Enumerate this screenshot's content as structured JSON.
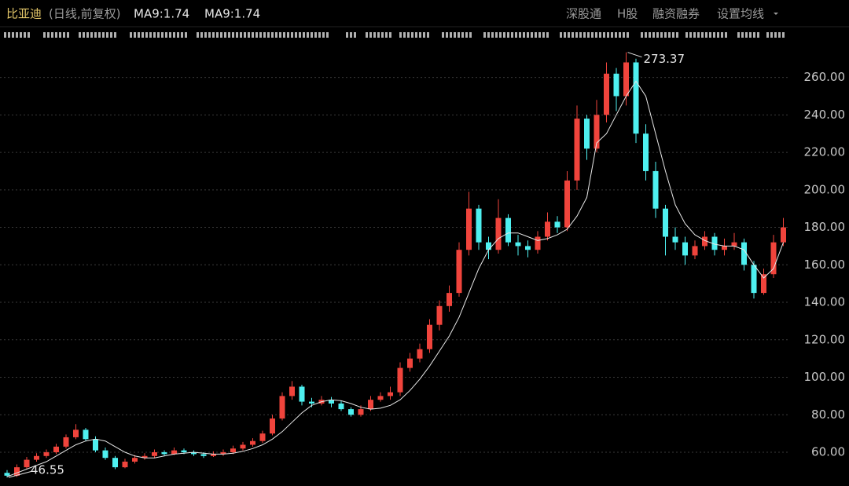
{
  "chart_data": {
    "type": "candlestick",
    "title": "比亚迪",
    "subtitle": "(日线,前复权)",
    "indicators": [
      "MA9:1.74",
      "MA9:1.74"
    ],
    "menu": [
      "深股通",
      "H股",
      "融资融券",
      "设置均线"
    ],
    "up_color": "#f0443c",
    "down_color": "#4ef0f0",
    "ma_color": "#e8e8e8",
    "grid": true,
    "ylim": [
      42,
      277
    ],
    "yticks": [
      {
        "value": 60,
        "label": "60.00"
      },
      {
        "value": 80,
        "label": "80.00"
      },
      {
        "value": 100,
        "label": "100.00"
      },
      {
        "value": 120,
        "label": "120.00"
      },
      {
        "value": 140,
        "label": "140.00"
      },
      {
        "value": 160,
        "label": "160.00"
      },
      {
        "value": 180,
        "label": "180.00"
      },
      {
        "value": 200,
        "label": "200.00"
      },
      {
        "value": 220,
        "label": "220.00"
      },
      {
        "value": 240,
        "label": "240.00"
      },
      {
        "value": 260,
        "label": "260.00"
      }
    ],
    "open": [
      49,
      47.5,
      52,
      56,
      58,
      60,
      63,
      68,
      72,
      67,
      61,
      57,
      52,
      55,
      57,
      58,
      60,
      59,
      61,
      60,
      59,
      58,
      59,
      60,
      62,
      64,
      66,
      70,
      78,
      90,
      95,
      87,
      86,
      88,
      86,
      83,
      80,
      83,
      88,
      90,
      92,
      105,
      110,
      115,
      128,
      138,
      145,
      168,
      190,
      172,
      168,
      185,
      172,
      170,
      168,
      175,
      183,
      180,
      205,
      238,
      222,
      240,
      262,
      250,
      268,
      230,
      210,
      190,
      175,
      172,
      165,
      170,
      175,
      168,
      170,
      172,
      160,
      145,
      155,
      172
    ],
    "high": [
      50.5,
      53.5,
      57.5,
      59.5,
      61.5,
      64.5,
      69.5,
      75,
      73,
      68.5,
      62.5,
      58,
      56.5,
      58.5,
      59.5,
      61.5,
      61,
      62.5,
      62,
      61,
      60,
      60.5,
      61.5,
      63.5,
      65.5,
      67.5,
      71.5,
      80,
      92,
      98,
      96,
      89,
      90,
      89.5,
      87.5,
      84,
      85,
      90,
      92,
      95,
      108,
      113,
      118,
      131,
      141,
      149,
      172,
      199,
      192,
      175,
      195,
      187,
      176,
      173,
      178,
      188,
      186,
      210,
      245,
      240,
      248,
      268,
      265,
      273.37,
      270,
      235,
      215,
      192,
      180,
      175,
      173,
      178,
      177,
      174,
      177,
      174,
      162,
      158,
      176,
      185
    ],
    "low": [
      46.55,
      46.8,
      51,
      55,
      57,
      59,
      62,
      67,
      66,
      60,
      56,
      51,
      51.5,
      54,
      56,
      57,
      58,
      58.5,
      59,
      58,
      57,
      57.5,
      58,
      59,
      61,
      63,
      65,
      69,
      77,
      88,
      85,
      84,
      85,
      84,
      82,
      79,
      79,
      82,
      87,
      88,
      90,
      103,
      108,
      113,
      125,
      135,
      143,
      165,
      168,
      163,
      166,
      170,
      165,
      164,
      166,
      173,
      177,
      178,
      200,
      216,
      220,
      236,
      242,
      245,
      225,
      205,
      185,
      165,
      168,
      160,
      163,
      168,
      165,
      165,
      168,
      157,
      142,
      144,
      153,
      170
    ],
    "close": [
      47.5,
      52,
      56,
      58,
      60,
      63,
      68,
      72,
      67,
      61,
      57,
      52,
      55,
      57,
      58,
      60,
      59,
      61,
      60,
      59,
      58,
      59,
      60,
      62,
      64,
      66,
      70,
      78,
      90,
      95,
      87,
      86,
      88,
      86,
      83,
      80,
      83,
      88,
      90,
      92,
      105,
      110,
      115,
      128,
      138,
      145,
      168,
      190,
      172,
      168,
      185,
      172,
      170,
      168,
      175,
      183,
      180,
      205,
      238,
      222,
      240,
      262,
      250,
      268,
      230,
      210,
      190,
      175,
      172,
      165,
      170,
      175,
      168,
      170,
      172,
      160,
      145,
      155,
      172,
      180
    ],
    "ma": [
      47,
      49,
      51,
      53,
      55,
      58,
      61,
      64,
      66,
      67,
      66,
      63,
      60,
      58,
      57,
      57,
      58,
      59,
      59.5,
      60,
      59.5,
      59,
      59,
      59.5,
      60.5,
      62,
      64,
      67,
      71,
      76,
      81,
      85,
      87,
      88,
      87.5,
      86,
      84,
      83,
      83.5,
      85,
      88,
      93,
      99,
      106,
      114,
      122,
      132,
      145,
      158,
      168,
      174,
      177,
      177,
      175,
      173,
      174,
      176,
      179,
      186,
      196,
      225,
      230,
      240,
      250,
      258,
      250,
      230,
      210,
      192,
      182,
      176,
      173,
      171,
      170,
      170,
      168,
      160,
      153,
      158,
      172
    ]
  }
}
